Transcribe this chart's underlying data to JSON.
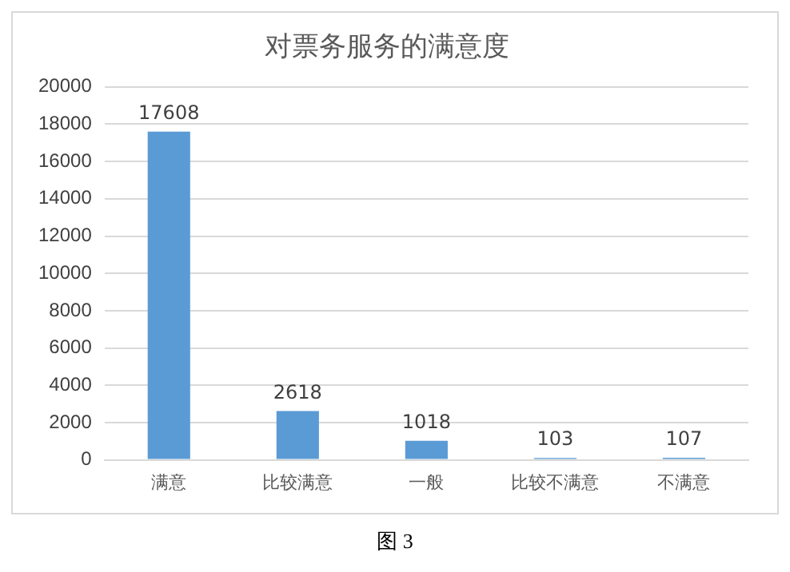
{
  "chart_data": {
    "type": "bar",
    "title": "对票务服务的满意度",
    "categories": [
      "满意",
      "比较满意",
      "一般",
      "比较不满意",
      "不满意"
    ],
    "values": [
      17608,
      2618,
      1018,
      103,
      107
    ],
    "color": "#5b9bd5",
    "ylim": [
      0,
      20000
    ],
    "yticks": [
      0,
      2000,
      4000,
      6000,
      8000,
      10000,
      12000,
      14000,
      16000,
      18000,
      20000
    ],
    "grid": "y",
    "data_labels": true,
    "legend": false,
    "annotations": [
      "图 3"
    ]
  }
}
